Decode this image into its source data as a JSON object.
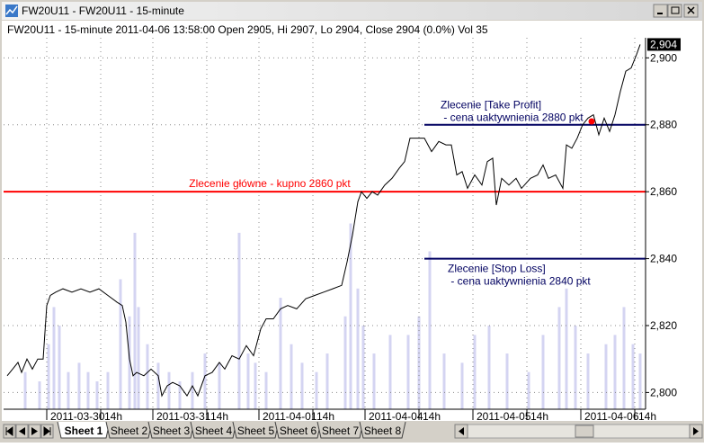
{
  "window": {
    "title": "FW20U11 - FW20U11 - 15-minute"
  },
  "info": "FW20U11 - 15-minute 2011-04-06 13:58:00 Open 2905, Hi 2907, Lo 2904, Close 2904 (0.0%) Vol 35",
  "chart_data": {
    "type": "line",
    "color": "#000000",
    "x": [
      2,
      5,
      8,
      10,
      13,
      16,
      19,
      22,
      24,
      26,
      29,
      33,
      38,
      43,
      48,
      53,
      58,
      63,
      66,
      68,
      70,
      72,
      74,
      78,
      82,
      86,
      88,
      91,
      94,
      98,
      102,
      105,
      108,
      112,
      116,
      120,
      123,
      127,
      131,
      135,
      139,
      143,
      146,
      150,
      154,
      158,
      163,
      168,
      173,
      178,
      183,
      188,
      191,
      194,
      197,
      199,
      202,
      205,
      208,
      212,
      216,
      220,
      223,
      226,
      230,
      234,
      238,
      242,
      246,
      249,
      252,
      255,
      258,
      262,
      266,
      269,
      272,
      274,
      277,
      281,
      285,
      288,
      293,
      297,
      300,
      303,
      307,
      311,
      313,
      316,
      319,
      322,
      325,
      328,
      331,
      334,
      337,
      340,
      343,
      346,
      349,
      352,
      354
    ],
    "values": [
      2805,
      2807,
      2809,
      2806,
      2810,
      2807,
      2810,
      2810,
      2826,
      2829,
      2830,
      2831,
      2830,
      2831,
      2830,
      2831,
      2829,
      2827,
      2826,
      2821,
      2810,
      2805,
      2806,
      2805,
      2807,
      2805,
      2799,
      2802,
      2803,
      2802,
      2799,
      2802,
      2799,
      2805,
      2806,
      2809,
      2807,
      2811,
      2810,
      2814,
      2811,
      2819,
      2822,
      2822,
      2825,
      2826,
      2825,
      2828,
      2829,
      2830,
      2831,
      2832,
      2839,
      2847,
      2857,
      2860,
      2858,
      2860,
      2859,
      2862,
      2864,
      2867,
      2869,
      2876,
      2876,
      2876,
      2872,
      2875,
      2874,
      2874,
      2865,
      2866,
      2861,
      2865,
      2862,
      2869,
      2870,
      2856,
      2864,
      2862,
      2864,
      2861,
      2864,
      2865,
      2868,
      2864,
      2865,
      2861,
      2874,
      2873,
      2876,
      2880,
      2882,
      2883,
      2877,
      2882,
      2878,
      2883,
      2890,
      2896,
      2897,
      2901,
      2904
    ],
    "volume": {
      "axis": "y2",
      "color": "#d4d4f2",
      "x": [
        12,
        20,
        25,
        28,
        31,
        36,
        42,
        47,
        52,
        58,
        65,
        70,
        73,
        75,
        80,
        86,
        92,
        98,
        105,
        112,
        120,
        131,
        136,
        140,
        146,
        154,
        160,
        166,
        174,
        180,
        190,
        193,
        197,
        200,
        206,
        215,
        225,
        231,
        237,
        245,
        255,
        262,
        270,
        280,
        292,
        300,
        309,
        313,
        318,
        325,
        335,
        340,
        345,
        350,
        354
      ],
      "values": [
        40,
        30,
        70,
        110,
        90,
        40,
        50,
        40,
        30,
        40,
        140,
        100,
        190,
        110,
        70,
        50,
        40,
        30,
        40,
        60,
        50,
        190,
        60,
        50,
        40,
        120,
        70,
        50,
        40,
        60,
        100,
        200,
        130,
        90,
        60,
        80,
        80,
        100,
        170,
        60,
        50,
        80,
        90,
        60,
        40,
        80,
        110,
        130,
        90,
        60,
        70,
        80,
        110,
        70,
        60
      ]
    },
    "xlim": [
      0,
      357
    ],
    "xticks": [
      {
        "value": 24,
        "label": "2011-03-30"
      },
      {
        "value": 54,
        "label": "14h"
      },
      {
        "value": 83,
        "label": "2011-03-31"
      },
      {
        "value": 113,
        "label": "14h"
      },
      {
        "value": 142,
        "label": "2011-04-01"
      },
      {
        "value": 172,
        "label": "14h"
      },
      {
        "value": 201,
        "label": "2011-04-04"
      },
      {
        "value": 231,
        "label": "14h"
      },
      {
        "value": 261,
        "label": "2011-04-05"
      },
      {
        "value": 291,
        "label": "14h"
      },
      {
        "value": 321,
        "label": "2011-04-06"
      },
      {
        "value": 351,
        "label": "14h"
      }
    ],
    "ylim": [
      2795,
      2906
    ],
    "yticks": [
      {
        "value": 2800,
        "label": "2,800"
      },
      {
        "value": 2820,
        "label": "2,820"
      },
      {
        "value": 2840,
        "label": "2,840"
      },
      {
        "value": 2860,
        "label": "2,860"
      },
      {
        "value": 2880,
        "label": "2,880"
      },
      {
        "value": 2900,
        "label": "2,900"
      }
    ],
    "y2lim": [
      0,
      400
    ],
    "grid": true,
    "last_value": {
      "value": 2904,
      "label": "2,904"
    },
    "marker": {
      "x": 327,
      "value": 2881,
      "color": "#ff0000"
    },
    "hlines": [
      {
        "value": 2860,
        "x_start": 0,
        "color": "#ff0000",
        "labels": [
          "Zlecenie główne - kupno 2860 pkt"
        ]
      },
      {
        "value": 2880,
        "x_start": 234,
        "color": "#000060",
        "labels": [
          "Zlecenie [Take Profit]",
          " - cena uaktywnienia 2880 pkt"
        ]
      },
      {
        "value": 2840,
        "x_start": 234,
        "color": "#000060",
        "labels": [
          "Zlecenie [Stop Loss]",
          " - cena uaktywnienia 2840 pkt"
        ]
      }
    ]
  },
  "tabs": [
    "Sheet 1",
    "Sheet 2",
    "Sheet 3",
    "Sheet 4",
    "Sheet 5",
    "Sheet 6",
    "Sheet 7",
    "Sheet 8"
  ]
}
